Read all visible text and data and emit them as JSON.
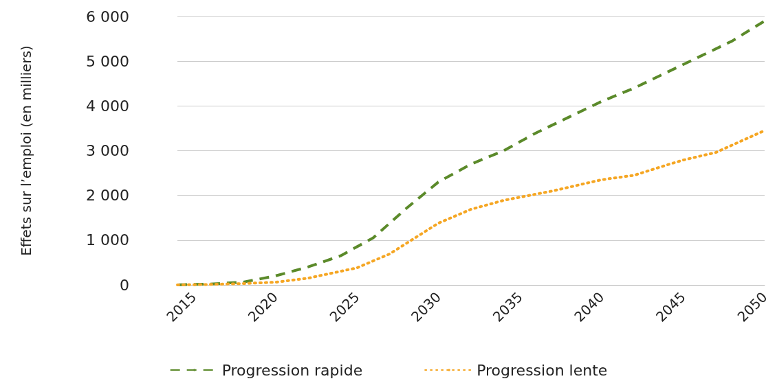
{
  "chart_data": {
    "type": "line",
    "ylabel": "Effets sur l’emploi (en milliers)",
    "xlim": [
      2014,
      2050
    ],
    "xticks": [
      2015,
      2020,
      2025,
      2030,
      2035,
      2040,
      2045,
      2050
    ],
    "ylim": [
      0,
      6000
    ],
    "yticks": [
      {
        "value": 0,
        "label": "0"
      },
      {
        "value": 1000,
        "label": "1 000"
      },
      {
        "value": 2000,
        "label": "2 000"
      },
      {
        "value": 3000,
        "label": "3 000"
      },
      {
        "value": 4000,
        "label": "4 000"
      },
      {
        "value": 5000,
        "label": "5 000"
      },
      {
        "value": 6000,
        "label": "6 000"
      }
    ],
    "grid": "y",
    "legend": "bottom",
    "marker": "none",
    "series": [
      {
        "name": "Progression rapide",
        "color": "#5b8a2a",
        "line_style": "dashed",
        "x": [
          2014,
          2016,
          2018,
          2020,
          2022,
          2024,
          2026,
          2028,
          2030,
          2032,
          2034,
          2036,
          2038,
          2040,
          2042,
          2044,
          2046,
          2048,
          2050
        ],
        "values": [
          0,
          20,
          60,
          200,
          400,
          650,
          1050,
          1700,
          2300,
          2700,
          3000,
          3400,
          3750,
          4100,
          4400,
          4750,
          5100,
          5450,
          5900
        ]
      },
      {
        "name": "Progression lente",
        "color": "#f5a623",
        "line_style": "dotted",
        "x": [
          2014,
          2016,
          2018,
          2020,
          2022,
          2025,
          2027,
          2029,
          2030,
          2032,
          2034,
          2035,
          2037,
          2040,
          2042,
          2044,
          2045,
          2047,
          2050
        ],
        "values": [
          0,
          10,
          30,
          60,
          150,
          380,
          690,
          1150,
          1380,
          1690,
          1890,
          1960,
          2100,
          2350,
          2450,
          2680,
          2790,
          2960,
          3450
        ]
      }
    ]
  }
}
